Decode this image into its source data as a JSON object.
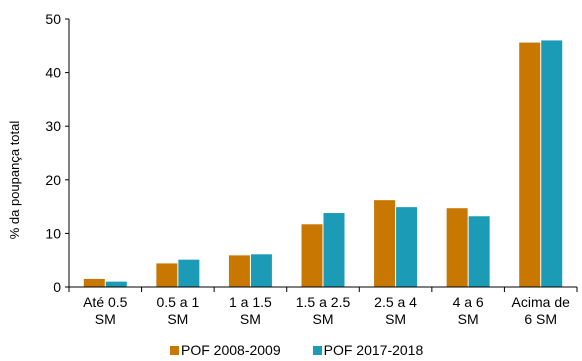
{
  "chart_data": {
    "type": "bar",
    "title": "(partially visible title, cropped at top)",
    "ylabel": "% da poupança total",
    "xlabel": "",
    "ylim": [
      0,
      50
    ],
    "yticks": [
      0,
      10,
      20,
      30,
      40,
      50
    ],
    "categories": [
      [
        "Até 0.5",
        "SM"
      ],
      [
        "0.5 a 1",
        "SM"
      ],
      [
        "1 a 1.5",
        "SM"
      ],
      [
        "1.5 a 2.5",
        "SM"
      ],
      [
        "2.5 a 4",
        "SM"
      ],
      [
        "4 a 6",
        "SM"
      ],
      [
        "Acima de",
        "6 SM"
      ]
    ],
    "series": [
      {
        "name": "POF 2008-2009",
        "color": "#c87800",
        "values": [
          1.5,
          4.4,
          5.9,
          11.7,
          16.2,
          14.7,
          45.6
        ]
      },
      {
        "name": "POF 2017-2018",
        "color": "#1b9bb5",
        "values": [
          1.0,
          5.1,
          6.1,
          13.8,
          14.9,
          13.2,
          46.0
        ]
      }
    ],
    "grid": false,
    "legend_position": "bottom"
  }
}
